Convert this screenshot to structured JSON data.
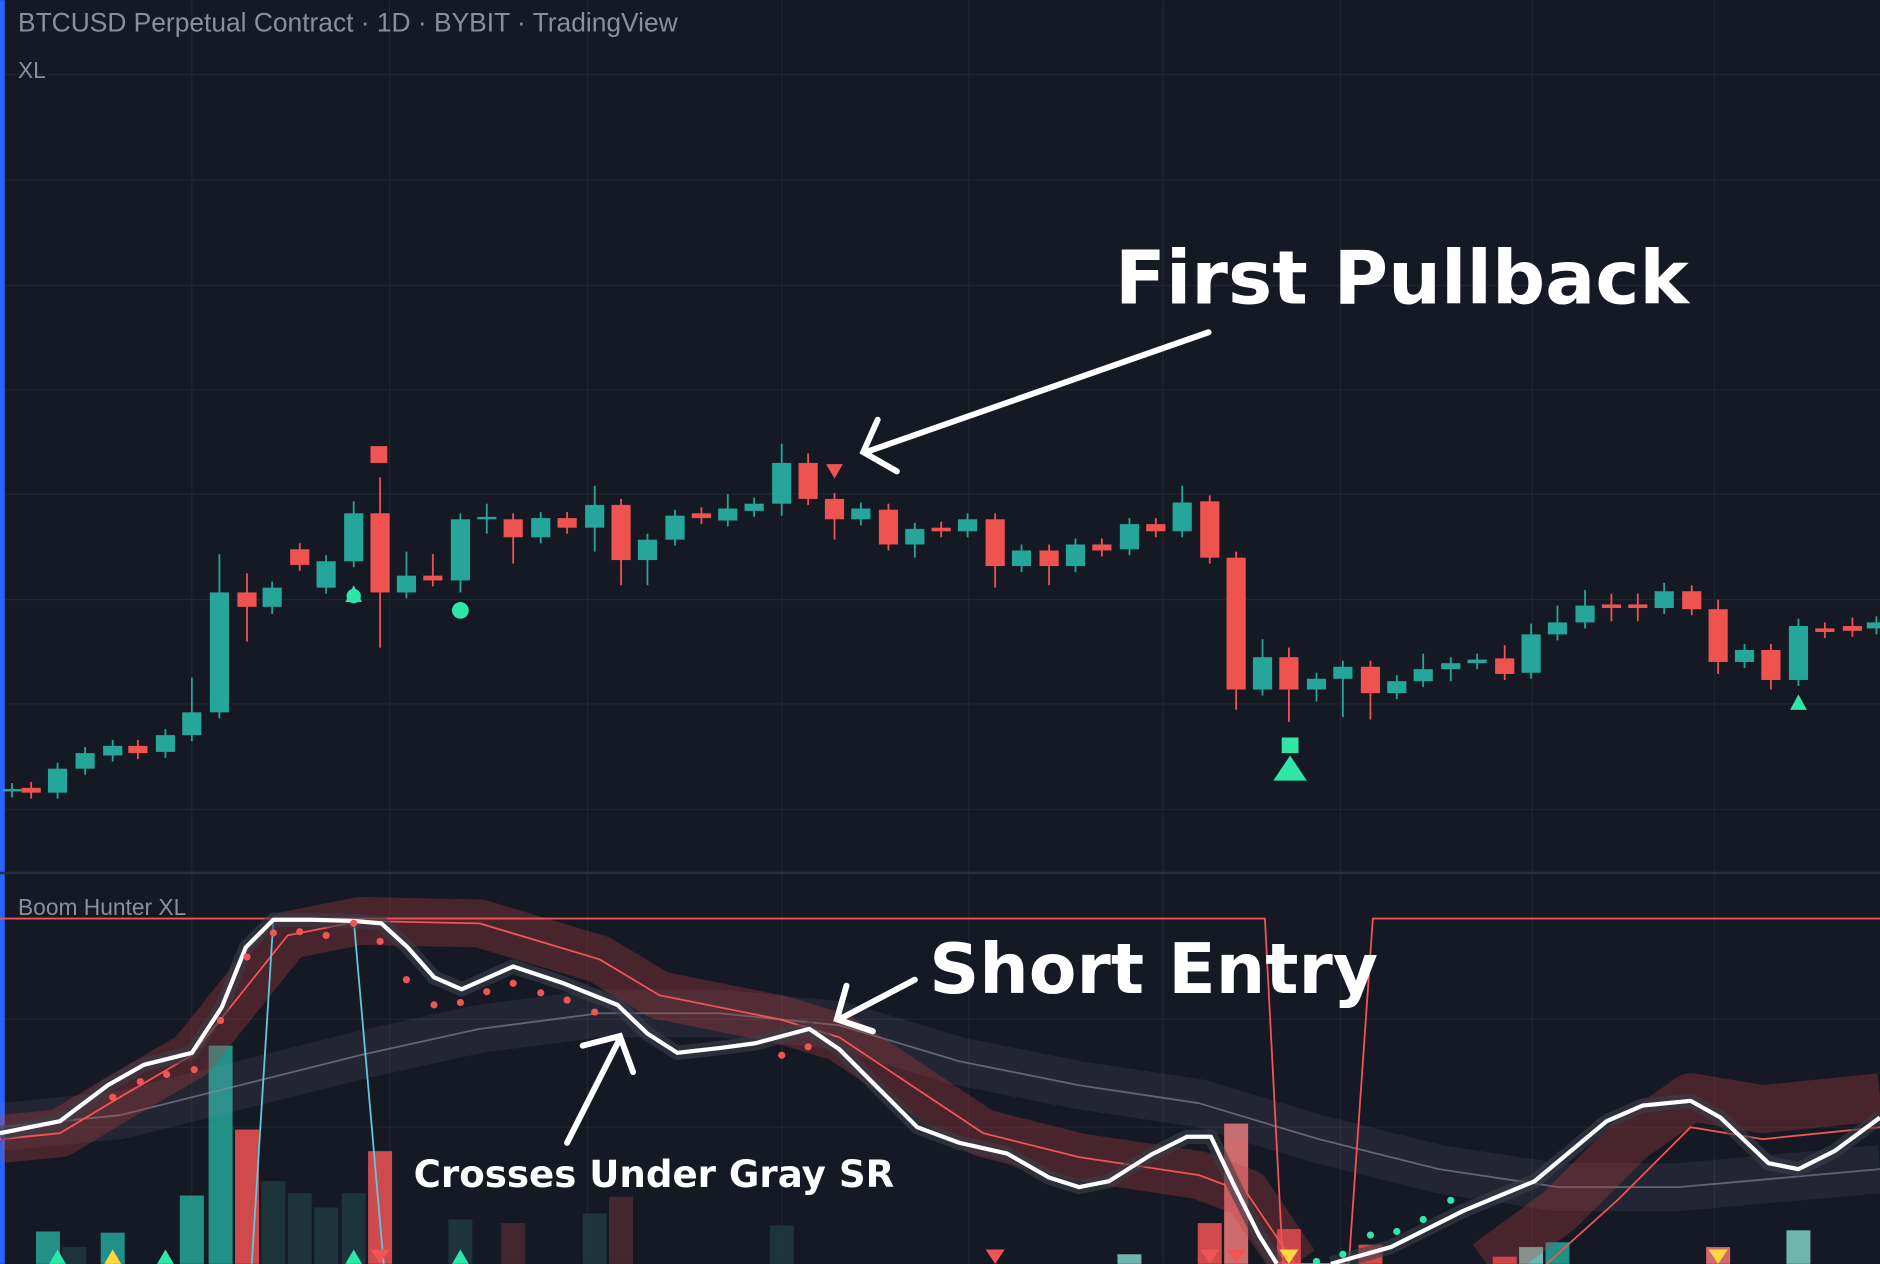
{
  "header": {
    "title": "BTCUSD Perpetual Contract · 1D · BYBIT · TradingView",
    "legend": "XL"
  },
  "indicator": {
    "title": "Boom Hunter XL"
  },
  "annotations": [
    "First Pullback",
    "Short Entry",
    "Crosses Under Gray SR"
  ]
}
